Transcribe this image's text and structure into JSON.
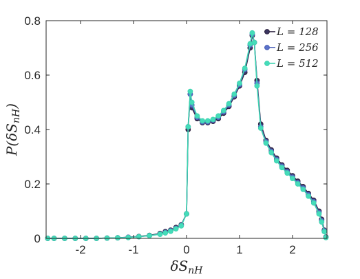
{
  "chart_data": {
    "type": "line",
    "xlabel": "δS_nH",
    "ylabel": "P(δS_nH)",
    "xlim": [
      -2.65,
      2.65
    ],
    "ylim": [
      0,
      0.8
    ],
    "x_ticks": [
      -2,
      -1,
      0,
      1,
      2
    ],
    "x_tick_labels": [
      "-2",
      "-1",
      "0",
      "1",
      "2"
    ],
    "y_ticks": [
      0,
      0.2,
      0.4,
      0.6,
      0.8
    ],
    "y_tick_labels": [
      "0",
      "0.2",
      "0.4",
      "0.6",
      "0.8"
    ],
    "grid": false,
    "legend_position": "top-right",
    "series": [
      {
        "name": "L = 128",
        "legend_label": "L = 128",
        "color": "#2a1f3d",
        "marker_fill": "#3b3560",
        "points": [
          [
            -2.62,
            0
          ],
          [
            -2.5,
            0
          ],
          [
            -2.3,
            0
          ],
          [
            -2.1,
            0
          ],
          [
            -1.9,
            0
          ],
          [
            -1.7,
            0
          ],
          [
            -1.5,
            0.001
          ],
          [
            -1.3,
            0.002
          ],
          [
            -1.1,
            0.004
          ],
          [
            -0.9,
            0.007
          ],
          [
            -0.7,
            0.011
          ],
          [
            -0.5,
            0.018
          ],
          [
            -0.4,
            0.025
          ],
          [
            -0.3,
            0.03
          ],
          [
            -0.2,
            0.04
          ],
          [
            -0.1,
            0.05
          ],
          [
            0.0,
            0.09
          ],
          [
            0.03,
            0.4
          ],
          [
            0.07,
            0.53
          ],
          [
            0.1,
            0.48
          ],
          [
            0.2,
            0.44
          ],
          [
            0.3,
            0.425
          ],
          [
            0.4,
            0.425
          ],
          [
            0.5,
            0.43
          ],
          [
            0.6,
            0.44
          ],
          [
            0.7,
            0.46
          ],
          [
            0.8,
            0.485
          ],
          [
            0.9,
            0.52
          ],
          [
            1.0,
            0.56
          ],
          [
            1.1,
            0.61
          ],
          [
            1.2,
            0.7
          ],
          [
            1.24,
            0.745
          ],
          [
            1.28,
            0.72
          ],
          [
            1.33,
            0.58
          ],
          [
            1.4,
            0.42
          ],
          [
            1.5,
            0.36
          ],
          [
            1.6,
            0.325
          ],
          [
            1.7,
            0.295
          ],
          [
            1.8,
            0.27
          ],
          [
            1.9,
            0.25
          ],
          [
            2.0,
            0.23
          ],
          [
            2.1,
            0.21
          ],
          [
            2.2,
            0.19
          ],
          [
            2.3,
            0.165
          ],
          [
            2.4,
            0.14
          ],
          [
            2.5,
            0.1
          ],
          [
            2.55,
            0.07
          ],
          [
            2.6,
            0.03
          ],
          [
            2.63,
            0.005
          ]
        ]
      },
      {
        "name": "L = 256",
        "legend_label": "L = 256",
        "color": "#4a5fb8",
        "marker_fill": "#5b73c9",
        "points": [
          [
            -2.62,
            0
          ],
          [
            -2.5,
            0
          ],
          [
            -2.3,
            0
          ],
          [
            -2.1,
            0
          ],
          [
            -1.9,
            0
          ],
          [
            -1.7,
            0
          ],
          [
            -1.5,
            0.001
          ],
          [
            -1.3,
            0.002
          ],
          [
            -1.1,
            0.004
          ],
          [
            -0.9,
            0.006
          ],
          [
            -0.7,
            0.01
          ],
          [
            -0.5,
            0.016
          ],
          [
            -0.4,
            0.022
          ],
          [
            -0.3,
            0.028
          ],
          [
            -0.2,
            0.037
          ],
          [
            -0.1,
            0.048
          ],
          [
            0.0,
            0.09
          ],
          [
            0.03,
            0.41
          ],
          [
            0.07,
            0.53
          ],
          [
            0.1,
            0.49
          ],
          [
            0.2,
            0.445
          ],
          [
            0.3,
            0.428
          ],
          [
            0.4,
            0.428
          ],
          [
            0.5,
            0.434
          ],
          [
            0.6,
            0.445
          ],
          [
            0.7,
            0.465
          ],
          [
            0.8,
            0.49
          ],
          [
            0.9,
            0.525
          ],
          [
            1.0,
            0.565
          ],
          [
            1.1,
            0.62
          ],
          [
            1.2,
            0.71
          ],
          [
            1.24,
            0.75
          ],
          [
            1.28,
            0.72
          ],
          [
            1.33,
            0.57
          ],
          [
            1.4,
            0.41
          ],
          [
            1.5,
            0.355
          ],
          [
            1.6,
            0.32
          ],
          [
            1.7,
            0.29
          ],
          [
            1.8,
            0.265
          ],
          [
            1.9,
            0.245
          ],
          [
            2.0,
            0.225
          ],
          [
            2.1,
            0.205
          ],
          [
            2.2,
            0.185
          ],
          [
            2.3,
            0.16
          ],
          [
            2.4,
            0.135
          ],
          [
            2.5,
            0.095
          ],
          [
            2.55,
            0.065
          ],
          [
            2.6,
            0.028
          ],
          [
            2.63,
            0.004
          ]
        ]
      },
      {
        "name": "L = 512",
        "legend_label": "L = 512",
        "color": "#3fd3b0",
        "marker_fill": "#45dcba",
        "points": [
          [
            -2.62,
            0
          ],
          [
            -2.5,
            0
          ],
          [
            -2.3,
            0
          ],
          [
            -2.1,
            0
          ],
          [
            -1.9,
            0
          ],
          [
            -1.7,
            0
          ],
          [
            -1.5,
            0.001
          ],
          [
            -1.3,
            0.002
          ],
          [
            -1.1,
            0.003
          ],
          [
            -0.9,
            0.006
          ],
          [
            -0.7,
            0.01
          ],
          [
            -0.5,
            0.015
          ],
          [
            -0.4,
            0.02
          ],
          [
            -0.3,
            0.026
          ],
          [
            -0.2,
            0.035
          ],
          [
            -0.1,
            0.046
          ],
          [
            0.0,
            0.09
          ],
          [
            0.03,
            0.41
          ],
          [
            0.07,
            0.54
          ],
          [
            0.1,
            0.5
          ],
          [
            0.2,
            0.45
          ],
          [
            0.3,
            0.432
          ],
          [
            0.4,
            0.432
          ],
          [
            0.5,
            0.437
          ],
          [
            0.6,
            0.45
          ],
          [
            0.7,
            0.47
          ],
          [
            0.8,
            0.495
          ],
          [
            0.9,
            0.53
          ],
          [
            1.0,
            0.57
          ],
          [
            1.1,
            0.625
          ],
          [
            1.2,
            0.715
          ],
          [
            1.24,
            0.755
          ],
          [
            1.28,
            0.72
          ],
          [
            1.33,
            0.56
          ],
          [
            1.4,
            0.405
          ],
          [
            1.5,
            0.35
          ],
          [
            1.6,
            0.315
          ],
          [
            1.7,
            0.285
          ],
          [
            1.8,
            0.26
          ],
          [
            1.9,
            0.24
          ],
          [
            2.0,
            0.22
          ],
          [
            2.1,
            0.2
          ],
          [
            2.2,
            0.18
          ],
          [
            2.3,
            0.155
          ],
          [
            2.4,
            0.13
          ],
          [
            2.5,
            0.09
          ],
          [
            2.55,
            0.06
          ],
          [
            2.6,
            0.025
          ],
          [
            2.63,
            0.003
          ]
        ]
      }
    ]
  }
}
